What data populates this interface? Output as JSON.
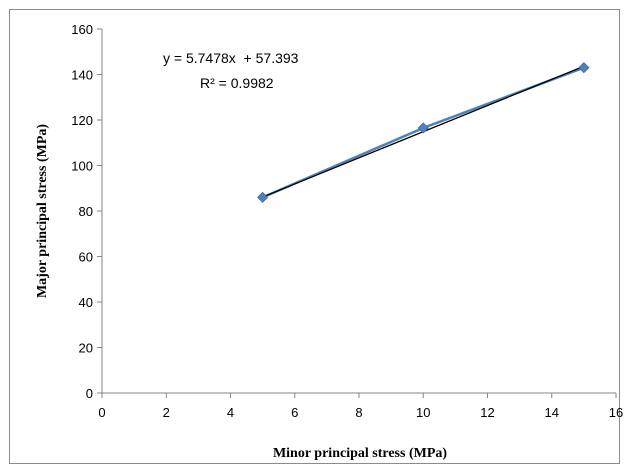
{
  "chart_data": {
    "type": "scatter",
    "title": "",
    "xlabel": "Minor principal stress (MPa)",
    "ylabel": "Major principal stress (MPa)",
    "xlim": [
      0,
      16
    ],
    "ylim": [
      0,
      160
    ],
    "x_ticks": [
      "0",
      "2",
      "4",
      "6",
      "8",
      "10",
      "12",
      "14",
      "16"
    ],
    "y_ticks": [
      "0",
      "20",
      "40",
      "60",
      "80",
      "100",
      "120",
      "140",
      "160"
    ],
    "grid": false,
    "legend": "none",
    "series": [
      {
        "x": [
          5,
          10,
          15
        ],
        "y": [
          86,
          116.5,
          143
        ],
        "marker": "diamond",
        "color": "#4f81bd"
      }
    ],
    "trendline": {
      "type": "linear",
      "slope": 5.7478,
      "intercept": 57.393,
      "x_range": [
        5,
        15
      ],
      "color": "#000000"
    },
    "annotations": {
      "equation": "y = 5.7478x  + 57.393",
      "r_squared": "R² = 0.9982"
    }
  }
}
